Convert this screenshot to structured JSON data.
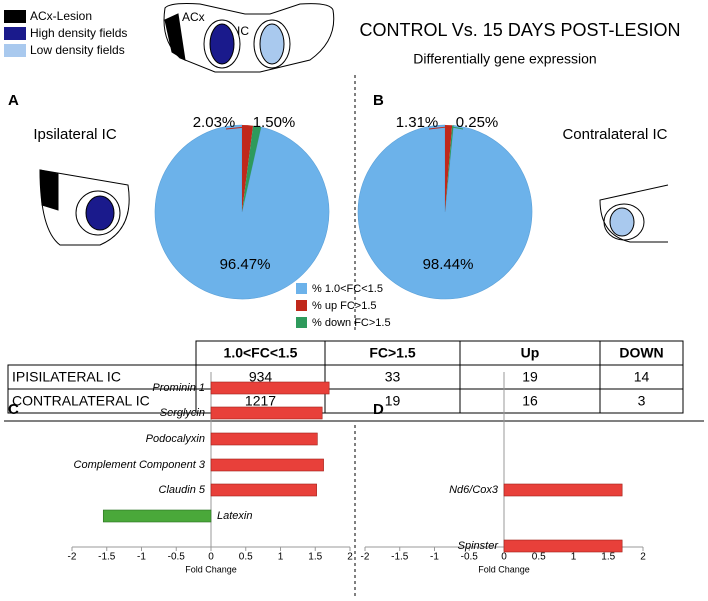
{
  "figure": {
    "title": "CONTROL Vs. 15 DAYS POST-LESION",
    "subtitle": "Differentially gene expression",
    "brain_legend": [
      {
        "label": "ACx-Lesion",
        "color": "#000000"
      },
      {
        "label": "High density fields",
        "color": "#1a1a8c"
      },
      {
        "label": "Low density fields",
        "color": "#a9c9ee"
      }
    ],
    "brain_labels": [
      "ACx",
      "IC"
    ],
    "panel_labels": [
      "A",
      "B",
      "C",
      "D"
    ],
    "side_labels": [
      "Ipsilateral IC",
      "Contralateral IC"
    ]
  },
  "table": {
    "header": [
      "1.0<FC<1.5",
      "FC>1.5",
      "Up",
      "DOWN"
    ],
    "rows": [
      [
        "IPISILATERAL IC",
        "934",
        "33",
        "19",
        "14"
      ],
      [
        "CONTRALATERAL  IC",
        "1217",
        "19",
        "16",
        "3"
      ]
    ]
  },
  "chart_data": [
    {
      "type": "pie",
      "categories": [
        "%  1.0<FC<1.5",
        "% up FC>1.5",
        "% down FC>1.5"
      ],
      "values": [
        96.47,
        2.03,
        1.5
      ],
      "value_labels": [
        "96.47%",
        "2.03%",
        "1.50%"
      ],
      "colors": [
        "#6cb2ea",
        "#c0281b",
        "#2e9a5c"
      ]
    },
    {
      "type": "pie",
      "values": [
        98.44,
        1.31,
        0.25
      ],
      "value_labels": [
        "98.44%",
        "1.31%",
        "0.25%"
      ],
      "colors": [
        "#6cb2ea",
        "#c0281b",
        "#2e9a5c"
      ]
    },
    {
      "type": "hbar",
      "categories": [
        "Prominin 1",
        "Serglycin",
        "Podocalyxin",
        "Complement Component 3",
        "Claudin 5",
        "Latexin"
      ],
      "values": [
        1.7,
        1.6,
        1.53,
        1.62,
        1.52,
        -1.55
      ],
      "xlim": [
        -2,
        2
      ],
      "xticks": [
        -2,
        -1.5,
        -1,
        -0.5,
        0,
        0.5,
        1,
        1.5,
        2
      ],
      "xlabel": "Fold Change",
      "up_color": "#e8403a",
      "down_color": "#4aa83a"
    },
    {
      "type": "hbar",
      "categories": [
        "Nd6/Cox3",
        "Spinster"
      ],
      "values": [
        1.7,
        1.7
      ],
      "xlim": [
        -2,
        2
      ],
      "xticks": [
        -2,
        -1.5,
        -1,
        -0.5,
        0,
        0.5,
        1,
        1.5,
        2
      ],
      "xlabel": "Fold Change",
      "up_color": "#e8403a",
      "down_color": "#4aa83a"
    }
  ]
}
